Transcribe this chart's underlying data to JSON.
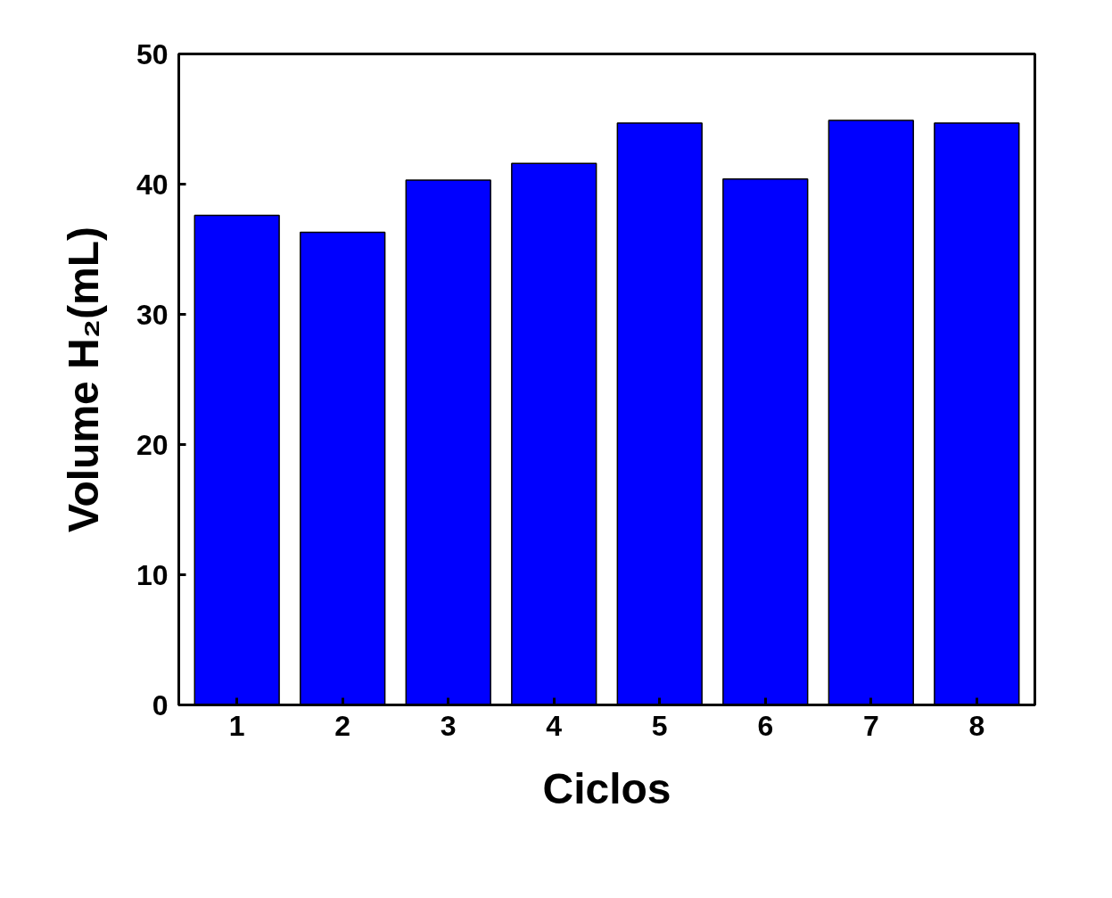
{
  "chart_data": {
    "type": "bar",
    "xlabel": "Ciclos",
    "ylabel": "Volume H₂(mL)",
    "categories": [
      "1",
      "2",
      "3",
      "4",
      "5",
      "6",
      "7",
      "8"
    ],
    "values": [
      37.6,
      36.3,
      40.3,
      41.6,
      44.7,
      40.4,
      44.9,
      44.7
    ],
    "color": "#0000ff",
    "ylim": [
      0,
      50
    ],
    "yticks": [
      0,
      10,
      20,
      30,
      40,
      50
    ],
    "grid": false
  }
}
